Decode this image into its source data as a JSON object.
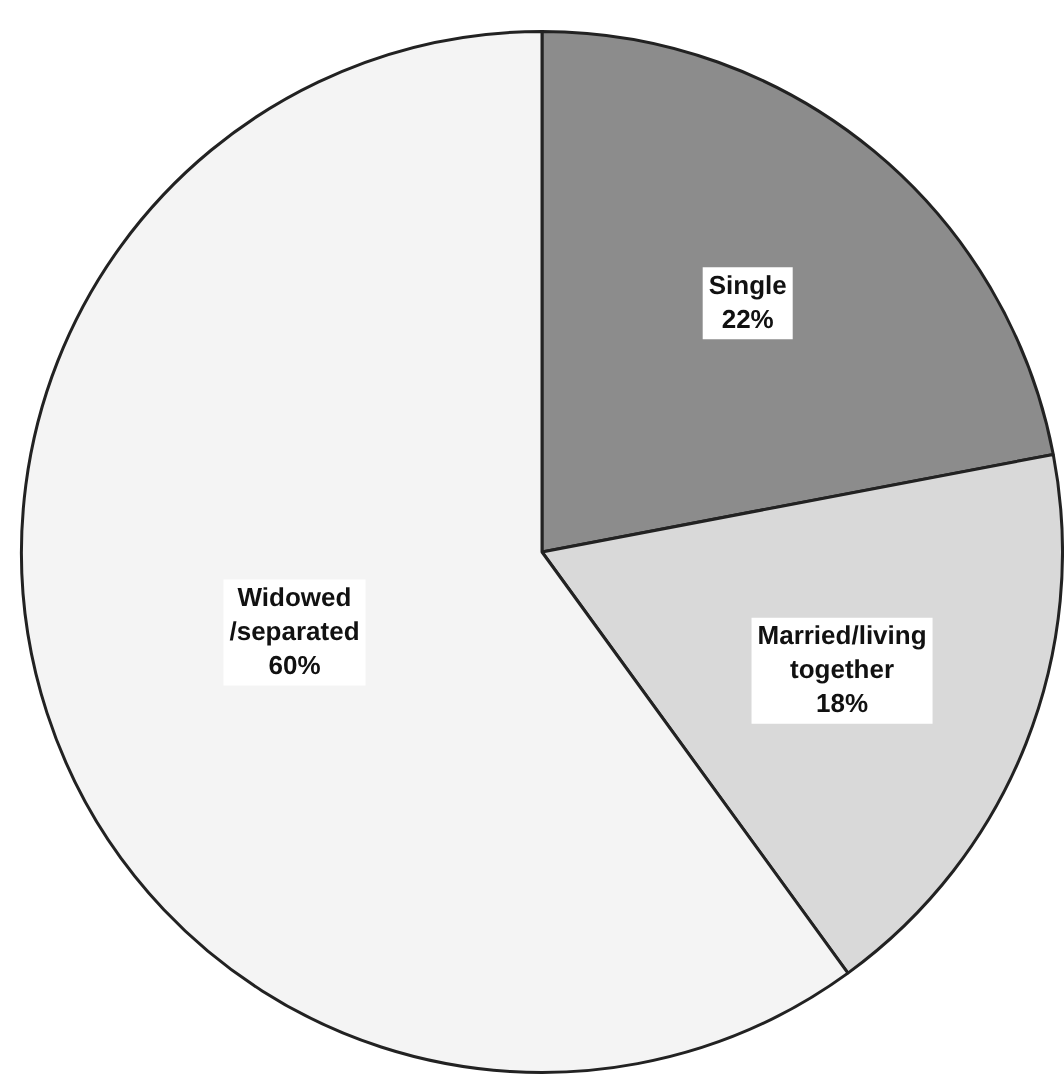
{
  "chart_data": {
    "type": "pie",
    "categories": [
      "Single",
      "Married/living together",
      "Widowed /separated"
    ],
    "values": [
      22,
      18,
      60
    ],
    "colors": [
      "#8c8c8c",
      "#d9d9d9",
      "#f4f4f4"
    ],
    "value_labels": [
      "22%",
      "18%",
      "60%"
    ],
    "legend": false
  }
}
